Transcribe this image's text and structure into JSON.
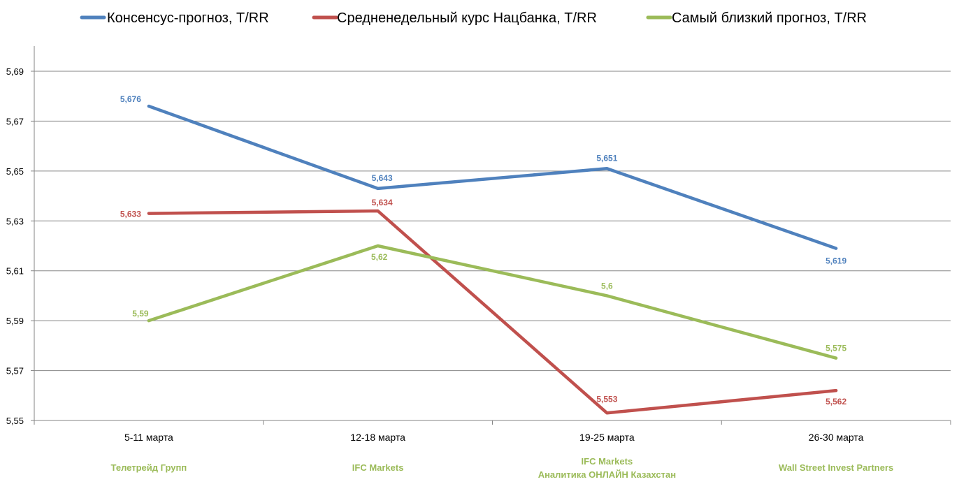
{
  "chart_data": {
    "type": "line",
    "categories": [
      "5-11 марта",
      "12-18 марта",
      "19-25 марта",
      "26-30 марта"
    ],
    "sources": [
      [
        "Телетрейд Групп"
      ],
      [
        "IFC Markets"
      ],
      [
        "IFC Markets",
        "Аналитика ОНЛАЙН Казахстан"
      ],
      [
        "Wall Street Invest Partners"
      ]
    ],
    "series": [
      {
        "name": "Консенсус-прогноз,  T/RR",
        "color": "#4f81bd",
        "values": [
          5.676,
          5.643,
          5.651,
          5.619
        ],
        "labels": [
          "5,676",
          "5,643",
          "5,651",
          "5,619"
        ]
      },
      {
        "name": "Средненедельный  курс Нацбанка, T/RR",
        "color": "#c0504d",
        "values": [
          5.633,
          5.634,
          5.553,
          5.562
        ],
        "labels": [
          "5,633",
          "5,634",
          "5,553",
          "5,562"
        ]
      },
      {
        "name": "Самый близкий прогноз, T/RR",
        "color": "#9bbb59",
        "values": [
          5.59,
          5.62,
          5.6,
          5.575
        ],
        "labels": [
          "5,59",
          "5,62",
          "5,6",
          "5,575"
        ]
      }
    ],
    "yticks": [
      5.55,
      5.57,
      5.59,
      5.61,
      5.63,
      5.65,
      5.67,
      5.69
    ],
    "ytick_labels": [
      "5,55",
      "5,57",
      "5,59",
      "5,61",
      "5,63",
      "5,65",
      "5,67",
      "5,69"
    ],
    "ylim": [
      5.55,
      5.69
    ],
    "grid": true,
    "legend_position": "top"
  }
}
